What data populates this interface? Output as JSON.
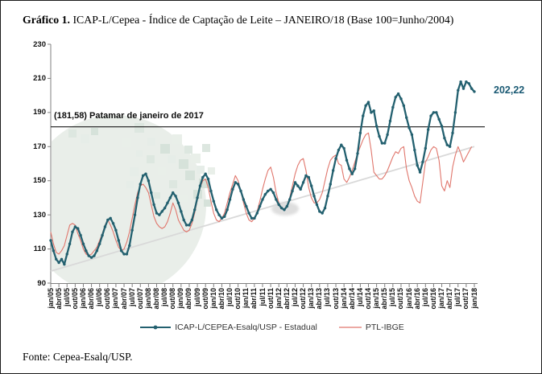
{
  "title": {
    "prefix": "Gráfico 1.",
    "rest": " ICAP-L/Cepea - Índice de Captação de Leite – JANEIRO/18 (Base 100=Junho/2004)"
  },
  "fonte": "Fonte: Cepea-Esalq/USP.",
  "annotations": {
    "patamar_label": "(181,58) Patamar de janeiro de 2017",
    "patamar_value": 181.58,
    "final_label": "202,22",
    "final_value": 202.22
  },
  "legend": {
    "items": [
      {
        "label": "ICAP-L/CEPEA-Esalq/USP - Estadual",
        "color": "#23606f"
      },
      {
        "label": "PTL-IBGE",
        "color": "#e0766c"
      }
    ]
  },
  "colors": {
    "icap_line": "#23606f",
    "ptl_line": "#e0766c",
    "final_label_text": "#1b5a74",
    "axis": "#808080",
    "reference_line": "#1a1a1a",
    "trend_line": "#d9d9d9"
  },
  "chart_data": {
    "type": "line",
    "title": "ICAP-L/Cepea - Índice de Captação de Leite – JANEIRO/18 (Base 100=Junho/2004)",
    "x_frequency": "monthly",
    "x_range": [
      "jan/05",
      "jan/18"
    ],
    "x_tick_labels": [
      "jan/05",
      "abr/05",
      "jul/05",
      "out/05",
      "jan/06",
      "abr/06",
      "jul/06",
      "out/06",
      "jan/07",
      "abr/07",
      "jul/07",
      "out/07",
      "jan/08",
      "abr/08",
      "jul/08",
      "out/08",
      "jan/09",
      "abr/09",
      "jul/09",
      "out/09",
      "jan/10",
      "abr/10",
      "jul/10",
      "out/10",
      "jan/11",
      "abr/11",
      "jul/11",
      "out/11",
      "jan/12",
      "abr/12",
      "jul/12",
      "out/12",
      "jan/13",
      "abr/13",
      "jul/13",
      "out/13",
      "jan/14",
      "abr/14",
      "jul/14",
      "out/14",
      "jan/15",
      "abr/15",
      "jul/15",
      "out/15",
      "jan/16",
      "abr/16",
      "jul/16",
      "out/16",
      "jan/17",
      "abr/17",
      "jul/17",
      "out/17",
      "jan/18"
    ],
    "y_ticks": [
      90,
      110,
      130,
      150,
      170,
      190,
      210,
      230
    ],
    "ylim": [
      90,
      230
    ],
    "grid": false,
    "legend_position": "bottom",
    "reference_line": {
      "value": 181.58,
      "label": "(181,58) Patamar de janeiro de 2017"
    },
    "trend_line": {
      "start_value": 97,
      "end_value": 170
    },
    "series": [
      {
        "name": "ICAP-L/CEPEA-Esalq/USP - Estadual",
        "color": "#23606f",
        "marker": "diamond",
        "monthly_values": [
          115,
          109,
          104,
          102,
          104,
          101,
          107,
          113,
          120,
          123,
          122,
          118,
          113,
          109,
          106,
          105,
          106,
          109,
          113,
          118,
          123,
          127,
          128,
          125,
          121,
          115,
          109,
          107,
          107,
          112,
          121,
          130,
          140,
          148,
          153,
          154,
          150,
          143,
          136,
          131,
          130,
          132,
          134,
          137,
          140,
          143,
          141,
          137,
          132,
          127,
          124,
          124,
          127,
          133,
          140,
          147,
          152,
          154,
          151,
          144,
          138,
          133,
          130,
          128,
          129,
          133,
          139,
          145,
          149,
          148,
          144,
          139,
          135,
          131,
          128,
          128,
          131,
          135,
          139,
          142,
          144,
          145,
          143,
          139,
          136,
          134,
          133,
          135,
          139,
          144,
          149,
          147,
          145,
          149,
          153,
          152,
          147,
          141,
          136,
          132,
          131,
          134,
          141,
          148,
          156,
          163,
          168,
          171,
          169,
          162,
          157,
          154,
          157,
          166,
          178,
          188,
          194,
          196,
          190,
          191,
          182,
          176,
          172,
          172,
          177,
          185,
          193,
          199,
          201,
          198,
          194,
          187,
          181,
          177,
          168,
          159,
          155,
          161,
          169,
          180,
          188,
          190,
          190,
          186,
          182,
          175,
          171,
          170,
          178,
          190,
          203,
          208,
          204,
          208,
          207,
          204,
          202.22
        ]
      },
      {
        "name": "PTL-IBGE",
        "color": "#e0766c",
        "marker": "none",
        "monthly_values": [
          120,
          113,
          108,
          107,
          109,
          112,
          118,
          124,
          125,
          124,
          119,
          115,
          110,
          107,
          106,
          107,
          109,
          111,
          115,
          119,
          124,
          127,
          124,
          120,
          115,
          111,
          109,
          110,
          114,
          120,
          128,
          136,
          143,
          147,
          148,
          146,
          143,
          136,
          129,
          125,
          123,
          122,
          123,
          126,
          131,
          137,
          133,
          127,
          124,
          121,
          120,
          121,
          125,
          131,
          139,
          146,
          150,
          151,
          146,
          138,
          131,
          127,
          126,
          128,
          131,
          137,
          143,
          148,
          153,
          150,
          144,
          137,
          131,
          127,
          126,
          128,
          132,
          138,
          145,
          151,
          156,
          158,
          152,
          143,
          137,
          134,
          133,
          135,
          140,
          147,
          154,
          159,
          162,
          163,
          156,
          146,
          140,
          137,
          137,
          139,
          143,
          150,
          157,
          162,
          164,
          165,
          160,
          159,
          151,
          149,
          152,
          156,
          161,
          166,
          170,
          174,
          177,
          178,
          168,
          155,
          153,
          151,
          151,
          153,
          156,
          160,
          164,
          167,
          166,
          169,
          170,
          157,
          150,
          146,
          141,
          138,
          137,
          149,
          161,
          164,
          168,
          170,
          169,
          162,
          147,
          144,
          150,
          146,
          158,
          165,
          170,
          166,
          161,
          164,
          167,
          170
        ]
      }
    ]
  }
}
